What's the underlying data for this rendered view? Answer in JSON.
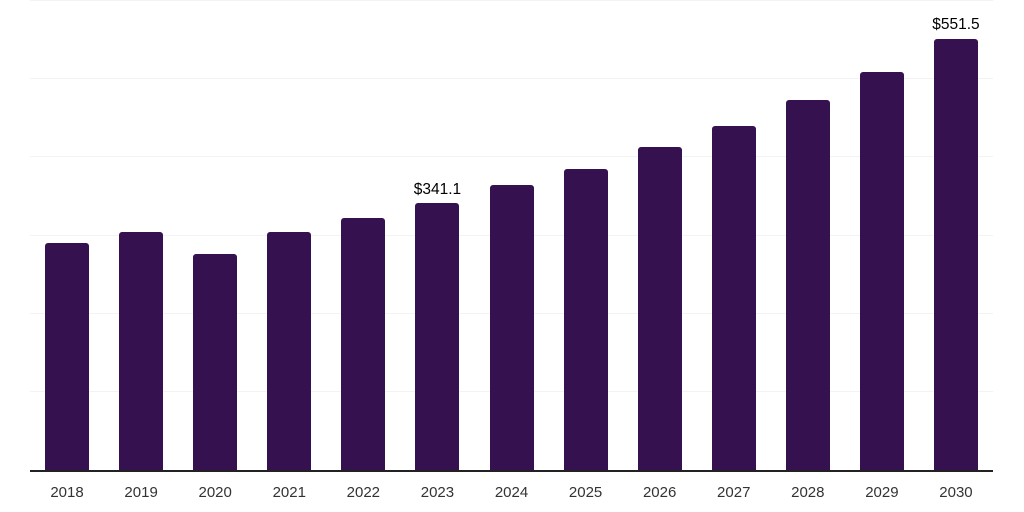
{
  "chart_style": {
    "background_color": "#ffffff",
    "bar_color": "#351150",
    "axis_line_color": "#222222",
    "gridline_color": "#f3f3f3",
    "x_tick_label_color": "#333333",
    "data_label_color": "#000000"
  },
  "chart_data": {
    "type": "bar",
    "title": "",
    "xlabel": "",
    "ylabel": "",
    "categories": [
      "2018",
      "2019",
      "2020",
      "2021",
      "2022",
      "2023",
      "2024",
      "2025",
      "2026",
      "2027",
      "2028",
      "2029",
      "2030"
    ],
    "values": [
      291,
      305,
      276,
      305,
      322,
      341.1,
      364,
      385,
      413,
      440,
      473,
      509,
      551.5
    ],
    "data_labels": [
      "",
      "",
      "",
      "",
      "",
      "$341.1",
      "",
      "",
      "",
      "",
      "",
      "",
      "$551.5"
    ],
    "ylim": [
      0,
      600
    ],
    "gridline_values": [
      100,
      200,
      300,
      400,
      500,
      600
    ],
    "grid": "horizontal",
    "legend_position": "none",
    "bar_rounded_top": true
  }
}
